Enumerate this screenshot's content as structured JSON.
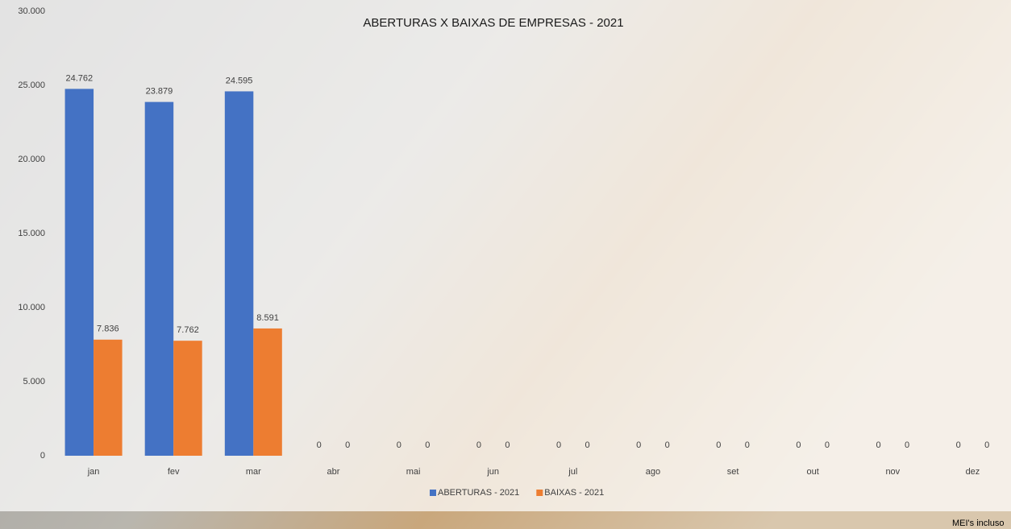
{
  "chart_data": {
    "type": "bar",
    "title": "ABERTURAS X BAIXAS DE EMPRESAS - 2021",
    "categories": [
      "jan",
      "fev",
      "mar",
      "abr",
      "mai",
      "jun",
      "jul",
      "ago",
      "set",
      "out",
      "nov",
      "dez"
    ],
    "series": [
      {
        "name": "ABERTURAS - 2021",
        "color": "#4472c4",
        "values": [
          24762,
          23879,
          24595,
          0,
          0,
          0,
          0,
          0,
          0,
          0,
          0,
          0
        ],
        "value_labels": [
          "24.762",
          "23.879",
          "24.595",
          "0",
          "0",
          "0",
          "0",
          "0",
          "0",
          "0",
          "0",
          "0"
        ]
      },
      {
        "name": "BAIXAS - 2021",
        "color": "#ed7d31",
        "values": [
          7836,
          7762,
          8591,
          0,
          0,
          0,
          0,
          0,
          0,
          0,
          0,
          0
        ],
        "value_labels": [
          "7.836",
          "7.762",
          "8.591",
          "0",
          "0",
          "0",
          "0",
          "0",
          "0",
          "0",
          "0",
          "0"
        ]
      }
    ],
    "ylim": [
      0,
      30000
    ],
    "yticks": [
      0,
      {
        "value": 5000,
        "label": "5.000"
      },
      {
        "value": 10000,
        "label": "10.000"
      },
      {
        "value": 15000,
        "label": "15.000"
      },
      {
        "value": 20000,
        "label": "20.000"
      },
      {
        "value": 25000,
        "label": "25.000"
      },
      {
        "value": 30000,
        "label": "30.000"
      }
    ],
    "legend": "bottom",
    "footnote": "MEI's incluso"
  }
}
